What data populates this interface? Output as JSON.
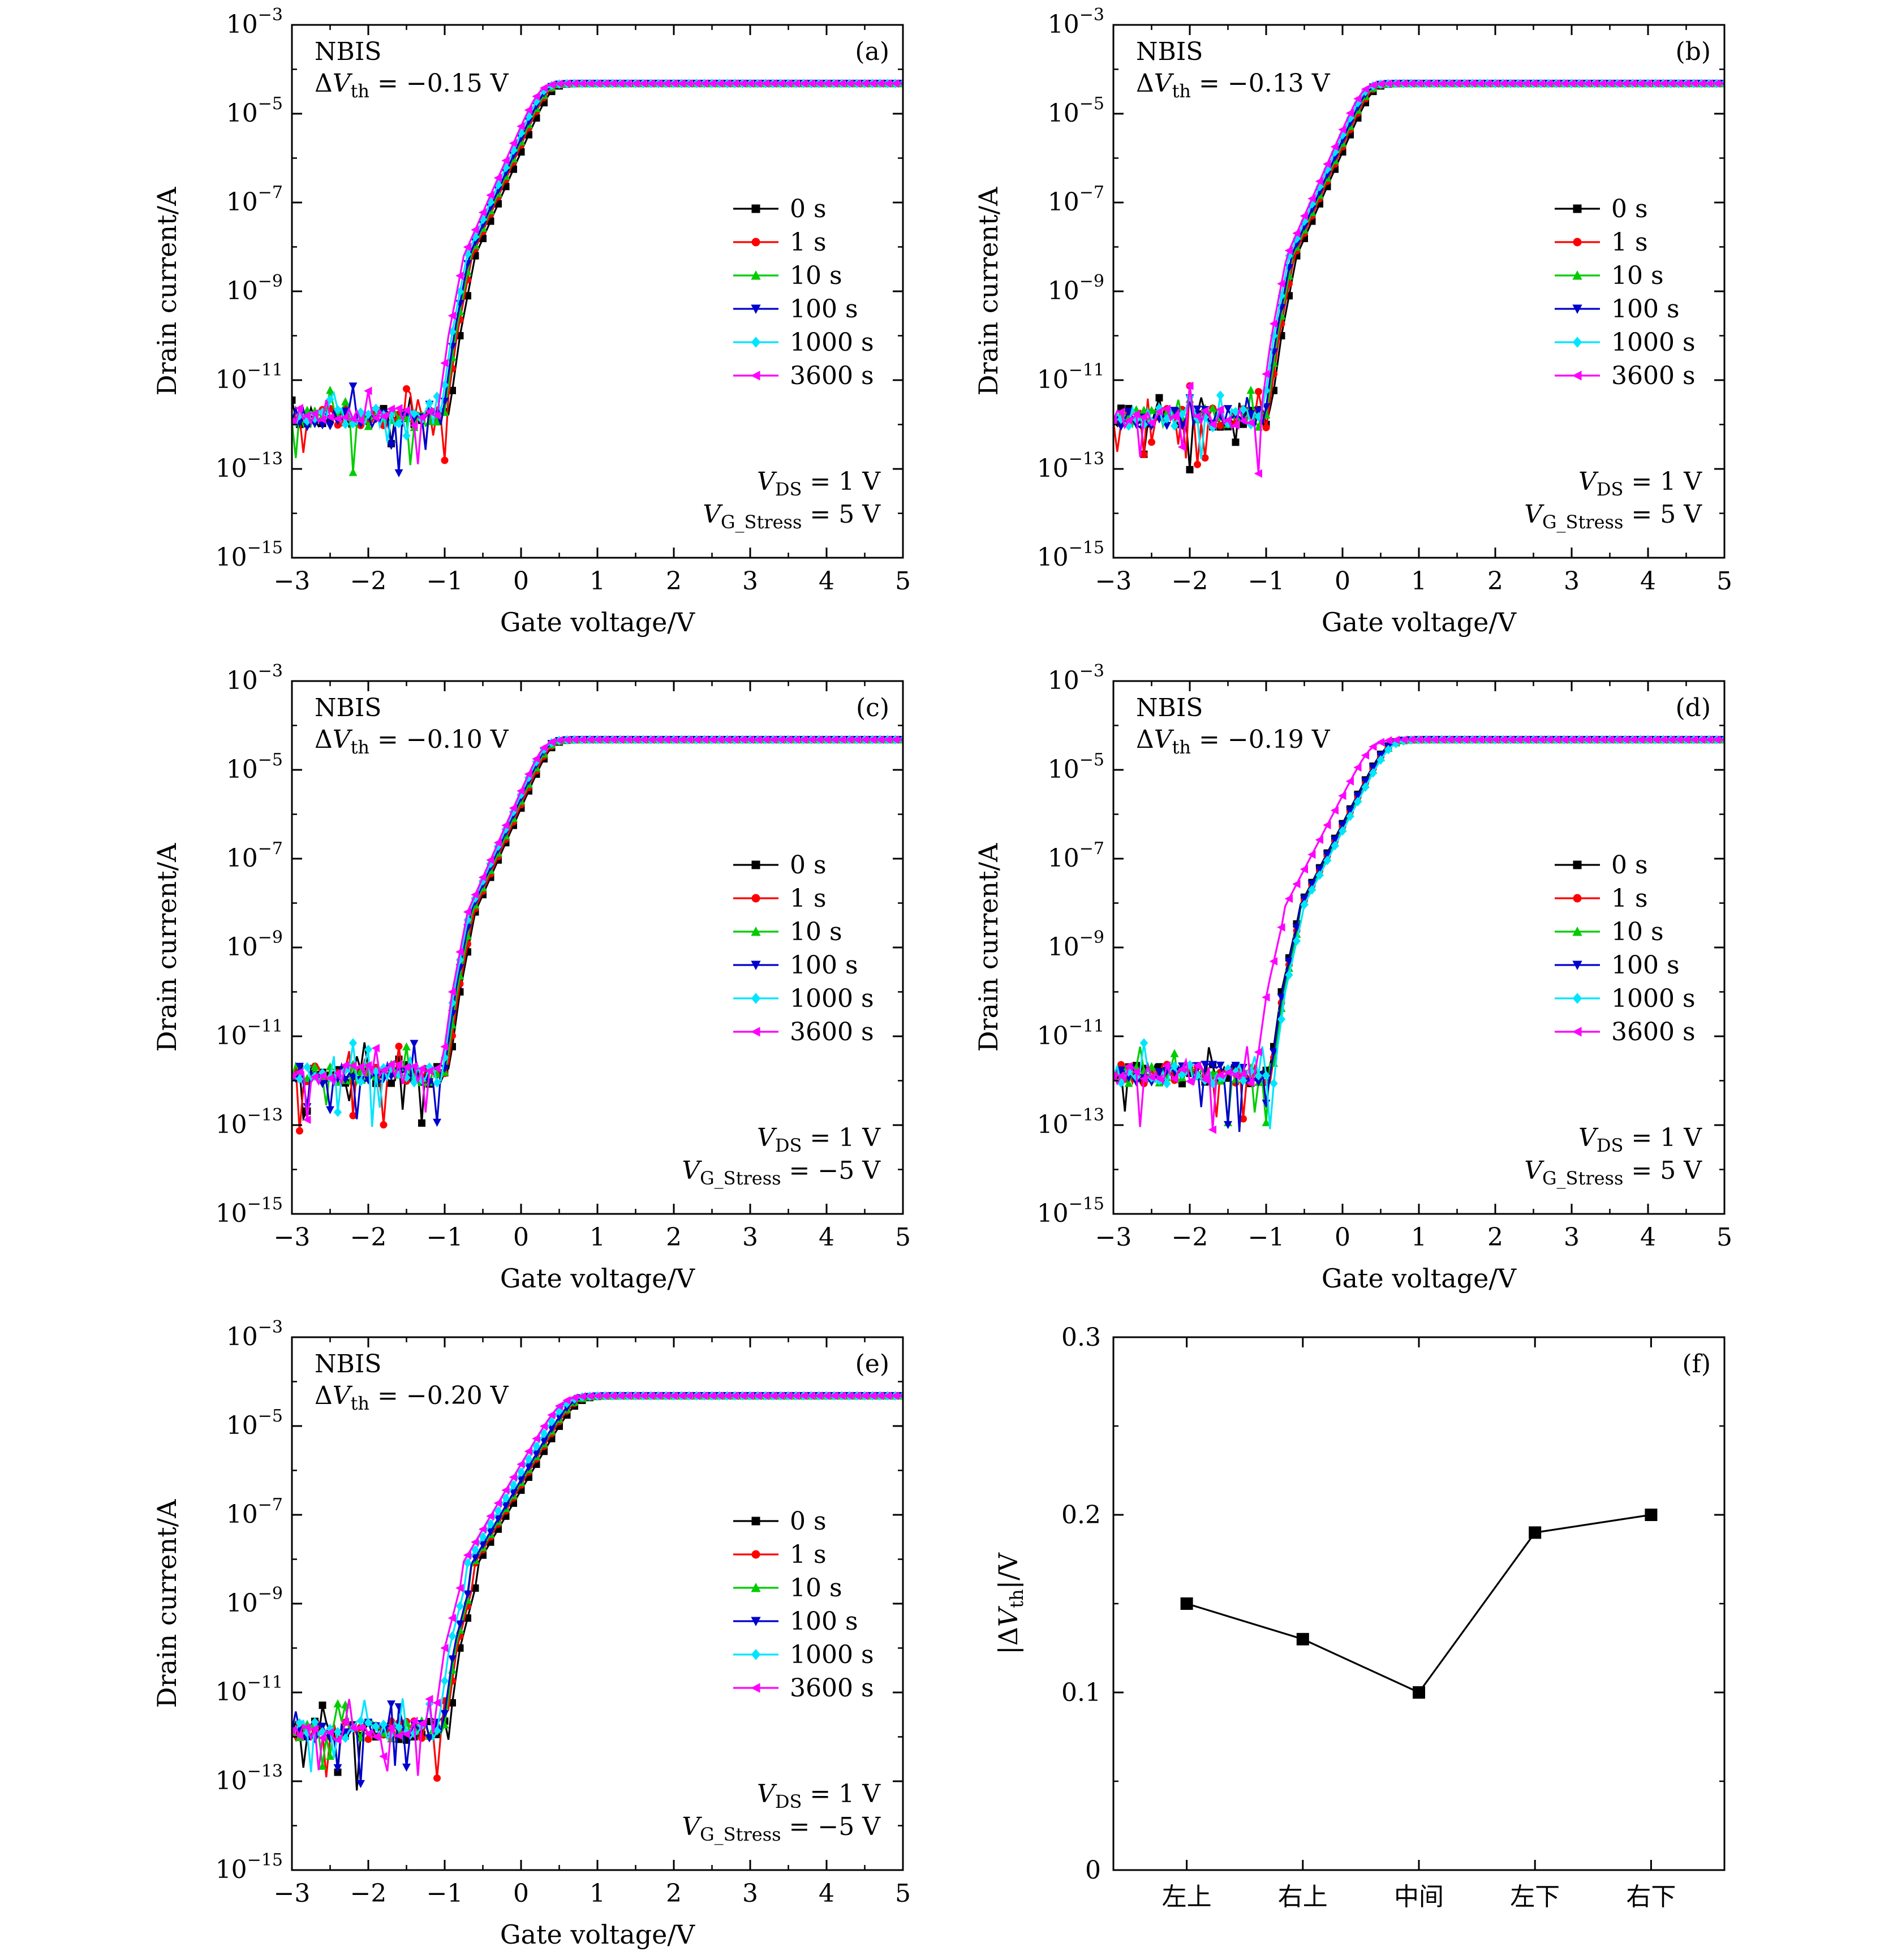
{
  "chart_data": [
    {
      "id": "a",
      "type": "line",
      "panel_label": "(a)",
      "xlabel": "Gate voltage/V",
      "ylabel": "Drain current/A",
      "xlim": [
        -3,
        5
      ],
      "ylim_exp": [
        -15,
        -3
      ],
      "yscale": "log",
      "x_ticks": [
        "−3",
        "−2",
        "−1",
        "0",
        "1",
        "2",
        "3",
        "4",
        "5"
      ],
      "y_ticks": [
        "−15",
        "−13",
        "−11",
        "−9",
        "−7",
        "−5",
        "−3"
      ],
      "y_tick_base": "10",
      "annotation": {
        "title": "NBIS",
        "dvth_label": "ΔV",
        "dvth_sub": "th",
        "dvth_value": "= −0.15 V"
      },
      "conditions": {
        "vds_label": "V",
        "vds_sub": "DS",
        "vds_value": "= 1 V",
        "vg_label": "V",
        "vg_sub": "G_Stress",
        "vg_value": "= 5 V"
      },
      "vth_shift": -0.15,
      "series": [
        {
          "name": "0 s",
          "color": "#000000",
          "marker": "square",
          "offset": 0,
          "steep": 1.0
        },
        {
          "name": "1 s",
          "color": "#ff0000",
          "marker": "circle",
          "offset": -0.04,
          "steep": 1.0
        },
        {
          "name": "10 s",
          "color": "#00cc00",
          "marker": "triangle-up",
          "offset": -0.06,
          "steep": 1.0
        },
        {
          "name": "100 s",
          "color": "#0000cc",
          "marker": "triangle-down",
          "offset": -0.08,
          "steep": 1.0
        },
        {
          "name": "1000 s",
          "color": "#00e5ff",
          "marker": "diamond",
          "offset": -0.11,
          "steep": 1.0
        },
        {
          "name": "3600 s",
          "color": "#ff00ff",
          "marker": "triangle-left",
          "offset": -0.15,
          "steep": 1.0
        }
      ]
    },
    {
      "id": "b",
      "type": "line",
      "panel_label": "(b)",
      "xlabel": "Gate voltage/V",
      "ylabel": "Drain current/A",
      "xlim": [
        -3,
        5
      ],
      "ylim_exp": [
        -15,
        -3
      ],
      "yscale": "log",
      "x_ticks": [
        "−3",
        "−2",
        "−1",
        "0",
        "1",
        "2",
        "3",
        "4",
        "5"
      ],
      "y_ticks": [
        "−15",
        "−13",
        "−11",
        "−9",
        "−7",
        "−5",
        "−3"
      ],
      "y_tick_base": "10",
      "annotation": {
        "title": "NBIS",
        "dvth_label": "ΔV",
        "dvth_sub": "th",
        "dvth_value": "= −0.13 V"
      },
      "conditions": {
        "vds_label": "V",
        "vds_sub": "DS",
        "vds_value": "= 1 V",
        "vg_label": "V",
        "vg_sub": "G_Stress",
        "vg_value": "= 5 V"
      },
      "vth_shift": -0.13,
      "series": [
        {
          "name": "0 s",
          "color": "#000000",
          "marker": "square",
          "offset": 0,
          "steep": 1.0
        },
        {
          "name": "1 s",
          "color": "#ff0000",
          "marker": "circle",
          "offset": -0.03,
          "steep": 1.0
        },
        {
          "name": "10 s",
          "color": "#00cc00",
          "marker": "triangle-up",
          "offset": -0.05,
          "steep": 1.0
        },
        {
          "name": "100 s",
          "color": "#0000cc",
          "marker": "triangle-down",
          "offset": -0.07,
          "steep": 1.0
        },
        {
          "name": "1000 s",
          "color": "#00e5ff",
          "marker": "diamond",
          "offset": -0.1,
          "steep": 1.0
        },
        {
          "name": "3600 s",
          "color": "#ff00ff",
          "marker": "triangle-left",
          "offset": -0.13,
          "steep": 1.0
        }
      ]
    },
    {
      "id": "c",
      "type": "line",
      "panel_label": "(c)",
      "xlabel": "Gate voltage/V",
      "ylabel": "Drain current/A",
      "xlim": [
        -3,
        5
      ],
      "ylim_exp": [
        -15,
        -3
      ],
      "yscale": "log",
      "x_ticks": [
        "−3",
        "−2",
        "−1",
        "0",
        "1",
        "2",
        "3",
        "4",
        "5"
      ],
      "y_ticks": [
        "−15",
        "−13",
        "−11",
        "−9",
        "−7",
        "−5",
        "−3"
      ],
      "y_tick_base": "10",
      "annotation": {
        "title": "NBIS",
        "dvth_label": "ΔV",
        "dvth_sub": "th",
        "dvth_value": "= −0.10 V"
      },
      "conditions": {
        "vds_label": "V",
        "vds_sub": "DS",
        "vds_value": "= 1 V",
        "vg_label": "V",
        "vg_sub": "G_Stress",
        "vg_value": "= −5 V"
      },
      "vth_shift": -0.1,
      "series": [
        {
          "name": "0 s",
          "color": "#000000",
          "marker": "square",
          "offset": 0,
          "steep": 1.0
        },
        {
          "name": "1 s",
          "color": "#ff0000",
          "marker": "circle",
          "offset": -0.02,
          "steep": 1.0
        },
        {
          "name": "10 s",
          "color": "#00cc00",
          "marker": "triangle-up",
          "offset": -0.04,
          "steep": 1.0
        },
        {
          "name": "100 s",
          "color": "#0000cc",
          "marker": "triangle-down",
          "offset": -0.06,
          "steep": 1.0
        },
        {
          "name": "1000 s",
          "color": "#00e5ff",
          "marker": "diamond",
          "offset": -0.08,
          "steep": 1.0
        },
        {
          "name": "3600 s",
          "color": "#ff00ff",
          "marker": "triangle-left",
          "offset": -0.1,
          "steep": 1.0
        }
      ]
    },
    {
      "id": "d",
      "type": "line",
      "panel_label": "(d)",
      "xlabel": "Gate voltage/V",
      "ylabel": "Drain current/A",
      "xlim": [
        -3,
        5
      ],
      "ylim_exp": [
        -15,
        -3
      ],
      "yscale": "log",
      "x_ticks": [
        "−3",
        "−2",
        "−1",
        "0",
        "1",
        "2",
        "3",
        "4",
        "5"
      ],
      "y_ticks": [
        "−15",
        "−13",
        "−11",
        "−9",
        "−7",
        "−5",
        "−3"
      ],
      "y_tick_base": "10",
      "annotation": {
        "title": "NBIS",
        "dvth_label": "ΔV",
        "dvth_sub": "th",
        "dvth_value": "= −0.19 V"
      },
      "conditions": {
        "vds_label": "V",
        "vds_sub": "DS",
        "vds_value": "= 1 V",
        "vg_label": "V",
        "vg_sub": "G_Stress",
        "vg_value": "= 5 V"
      },
      "vth_shift": -0.19,
      "series": [
        {
          "name": "0 s",
          "color": "#000000",
          "marker": "square",
          "offset": 0,
          "steep": 0.85
        },
        {
          "name": "1 s",
          "color": "#ff0000",
          "marker": "circle",
          "offset": 0.02,
          "steep": 0.85
        },
        {
          "name": "10 s",
          "color": "#00cc00",
          "marker": "triangle-up",
          "offset": 0.03,
          "steep": 0.85
        },
        {
          "name": "100 s",
          "color": "#0000cc",
          "marker": "triangle-down",
          "offset": 0.01,
          "steep": 0.85
        },
        {
          "name": "1000 s",
          "color": "#00e5ff",
          "marker": "diamond",
          "offset": 0.05,
          "steep": 0.85
        },
        {
          "name": "3600 s",
          "color": "#ff00ff",
          "marker": "triangle-left",
          "offset": -0.19,
          "steep": 0.85
        }
      ]
    },
    {
      "id": "e",
      "type": "line",
      "panel_label": "(e)",
      "xlabel": "Gate voltage/V",
      "ylabel": "Drain current/A",
      "xlim": [
        -3,
        5
      ],
      "ylim_exp": [
        -15,
        -3
      ],
      "yscale": "log",
      "x_ticks": [
        "−3",
        "−2",
        "−1",
        "0",
        "1",
        "2",
        "3",
        "4",
        "5"
      ],
      "y_ticks": [
        "−15",
        "−13",
        "−11",
        "−9",
        "−7",
        "−5",
        "−3"
      ],
      "y_tick_base": "10",
      "annotation": {
        "title": "NBIS",
        "dvth_label": "ΔV",
        "dvth_sub": "th",
        "dvth_value": "= −0.20 V"
      },
      "conditions": {
        "vds_label": "V",
        "vds_sub": "DS",
        "vds_value": "= 1 V",
        "vg_label": "V",
        "vg_sub": "G_Stress",
        "vg_value": "= −5 V"
      },
      "vth_shift": -0.2,
      "series": [
        {
          "name": "0 s",
          "color": "#000000",
          "marker": "square",
          "offset": 0,
          "steep": 0.75
        },
        {
          "name": "1 s",
          "color": "#ff0000",
          "marker": "circle",
          "offset": -0.04,
          "steep": 0.75
        },
        {
          "name": "10 s",
          "color": "#00cc00",
          "marker": "triangle-up",
          "offset": -0.06,
          "steep": 0.75
        },
        {
          "name": "100 s",
          "color": "#0000cc",
          "marker": "triangle-down",
          "offset": -0.08,
          "steep": 0.75
        },
        {
          "name": "1000 s",
          "color": "#00e5ff",
          "marker": "diamond",
          "offset": -0.14,
          "steep": 0.75
        },
        {
          "name": "3600 s",
          "color": "#ff00ff",
          "marker": "triangle-left",
          "offset": -0.2,
          "steep": 0.75
        }
      ]
    },
    {
      "id": "f",
      "type": "line",
      "panel_label": "(f)",
      "ylabel_prefix": "|ΔV",
      "ylabel_sub": "th",
      "ylabel_suffix": "|/V",
      "ylim": [
        0,
        0.3
      ],
      "y_ticks": [
        "0",
        "0.1",
        "0.2",
        "0.3"
      ],
      "categories": [
        "左上",
        "右上",
        "中间",
        "左下",
        "右下"
      ],
      "values": [
        0.15,
        0.13,
        0.1,
        0.19,
        0.2
      ],
      "color": "#000000",
      "marker": "square"
    }
  ]
}
